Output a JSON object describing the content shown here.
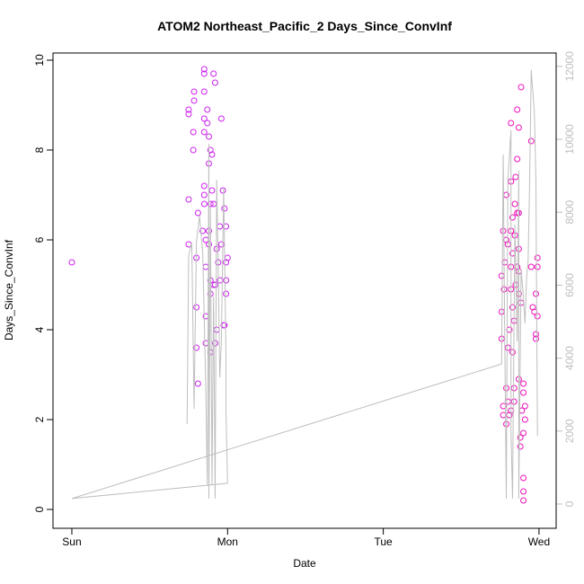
{
  "chart_data": {
    "type": "scatter",
    "title": "ATOM2 Northeast_Pacific_2 Days_Since_ConvInf",
    "x_label": "Date",
    "y_label": "Days_Since_ConvInf",
    "xlim": [
      -0.121,
      3.11
    ],
    "xticks": [
      {
        "value": 0,
        "label": "Sun"
      },
      {
        "value": 1,
        "label": "Mon"
      },
      {
        "value": 2,
        "label": "Tue"
      },
      {
        "value": 3,
        "label": "Wed"
      }
    ],
    "ylim": [
      -0.42,
      10.16
    ],
    "yticks": [
      0,
      2,
      4,
      6,
      8,
      10
    ],
    "y2lim": [
      -665,
      12365
    ],
    "y2ticks": [
      0,
      2000,
      4000,
      6000,
      8000,
      10000,
      12000
    ],
    "y2color": "#bebebe",
    "series": [
      {
        "color": "#cc22ee",
        "x": [
          0,
          0.75,
          0.75,
          0.75,
          0.75,
          0.78,
          0.78,
          0.785,
          0.785,
          0.8,
          0.8,
          0.8,
          0.81,
          0.81,
          0.84,
          0.85,
          0.85,
          0.85,
          0.85,
          0.85,
          0.85,
          0.85,
          0.85,
          0.86,
          0.86,
          0.86,
          0.86,
          0.87,
          0.87,
          0.88,
          0.88,
          0.88,
          0.88,
          0.89,
          0.89,
          0.89,
          0.89,
          0.89,
          0.9,
          0.9,
          0.91,
          0.91,
          0.91,
          0.92,
          0.92,
          0.92,
          0.93,
          0.93,
          0.94,
          0.95,
          0.95,
          0.96,
          0.96,
          0.97,
          0.975,
          0.98,
          0.98,
          0.99,
          0.99,
          0.99,
          1.0,
          0.99
        ],
        "values": [
          5.5,
          8.8,
          8.9,
          6.9,
          5.9,
          8.0,
          8.4,
          9.1,
          9.3,
          5.6,
          4.5,
          3.6,
          2.8,
          6.6,
          6.2,
          9.8,
          9.7,
          9.3,
          8.7,
          8.4,
          7.2,
          7.0,
          6.8,
          6.0,
          5.4,
          4.3,
          3.7,
          8.9,
          8.6,
          8.3,
          7.7,
          6.2,
          5.9,
          6.8,
          5.1,
          4.8,
          3.5,
          8.0,
          7.9,
          7.1,
          6.8,
          5.0,
          9.7,
          3.7,
          9.5,
          5.0,
          5.8,
          4.0,
          5.5,
          6.3,
          5.1,
          5.9,
          8.7,
          7.1,
          4.1,
          6.7,
          4.1,
          6.3,
          5.5,
          4.8,
          5.6,
          5.1
        ]
      },
      {
        "color": "#ee11bb",
        "x": [
          2.76,
          2.76,
          2.76,
          2.77,
          2.77,
          2.77,
          2.775,
          2.78,
          2.79,
          2.79,
          2.79,
          2.79,
          2.8,
          2.8,
          2.8,
          2.81,
          2.81,
          2.82,
          2.82,
          2.82,
          2.82,
          2.82,
          2.82,
          2.83,
          2.83,
          2.83,
          2.83,
          2.84,
          2.84,
          2.84,
          2.845,
          2.845,
          2.85,
          2.85,
          2.86,
          2.86,
          2.86,
          2.86,
          2.87,
          2.87,
          2.87,
          2.87,
          2.87,
          2.87,
          2.88,
          2.88,
          2.885,
          2.885,
          2.89,
          2.9,
          2.9,
          2.9,
          2.9,
          2.9,
          2.9,
          2.91,
          2.91,
          2.95,
          2.95,
          2.96,
          2.97,
          2.98,
          2.98,
          2.98,
          2.99,
          2.99,
          2.99
        ],
        "values": [
          5.2,
          3.8,
          4.4,
          6.2,
          2.1,
          2.3,
          4.9,
          5.5,
          2.7,
          1.9,
          7.0,
          6.0,
          3.6,
          2.4,
          5.9,
          2.1,
          4.0,
          8.6,
          7.3,
          6.2,
          5.4,
          4.9,
          2.2,
          6.5,
          5.7,
          4.5,
          3.5,
          4.2,
          2.4,
          2.7,
          6.8,
          6.1,
          7.4,
          5.0,
          6.6,
          7.8,
          8.9,
          5.4,
          8.5,
          2.9,
          6.6,
          5.8,
          5.3,
          4.8,
          1.6,
          1.4,
          9.4,
          4.6,
          2.2,
          0.7,
          0.4,
          0.2,
          1.7,
          2.8,
          2.6,
          2.3,
          2.0,
          8.2,
          5.4,
          4.5,
          4.4,
          4.8,
          3.9,
          3.8,
          4.3,
          5.6,
          5.4
        ]
      },
      {
        "type": "line",
        "axis": "y2",
        "color": "#bebebe",
        "x": [
          0.74,
          0.75,
          0.77,
          0.785,
          0.8,
          0.82,
          0.84,
          0.86,
          0.87,
          0.88,
          0.88,
          0.89,
          0.9,
          0.91,
          0.92,
          0.93,
          0.94,
          0.95,
          0.96,
          0.975,
          0.99,
          0.99,
          1.0,
          0,
          2.76,
          2.77,
          2.78,
          2.79,
          2.8,
          2.82,
          2.82,
          2.83,
          2.845,
          2.86,
          2.87,
          2.87,
          2.885,
          2.9,
          2.91,
          2.92,
          2.93,
          2.94,
          2.95,
          2.97,
          2.98,
          2.99
        ],
        "values": [
          2190,
          6800,
          7170,
          2610,
          7170,
          7900,
          6920,
          3230,
          520,
          9880,
          150,
          8150,
          520,
          5690,
          150,
          8890,
          6430,
          3470,
          4460,
          8650,
          3970,
          2490,
          570,
          150,
          3840,
          9580,
          4460,
          150,
          8890,
          10250,
          2000,
          150,
          7660,
          4460,
          9140,
          150,
          6430,
          5690,
          4950,
          6180,
          6670,
          8890,
          11900,
          10740,
          8890,
          1870
        ]
      }
    ]
  }
}
